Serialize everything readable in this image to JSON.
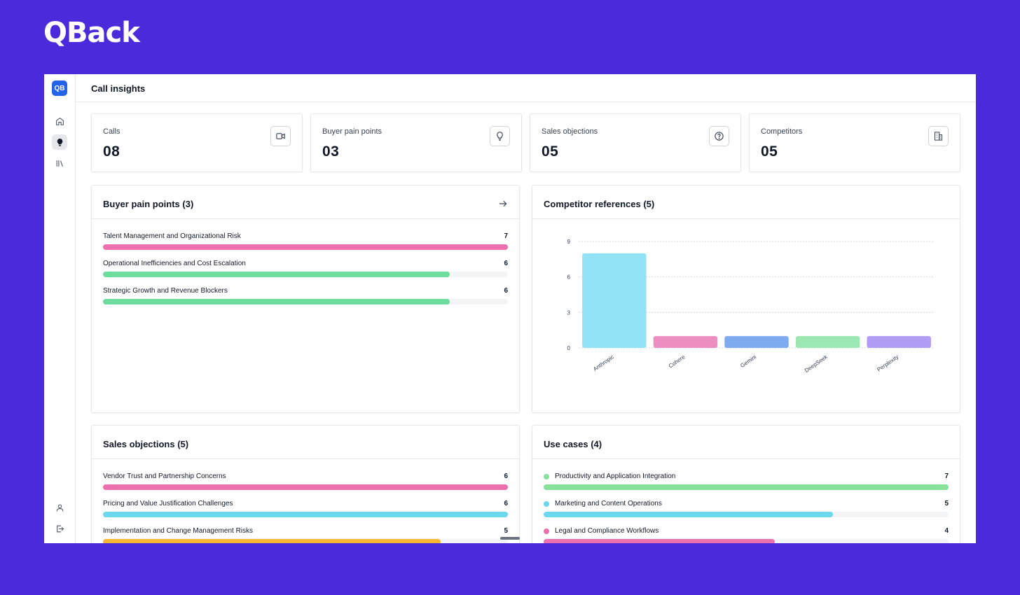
{
  "brand": {
    "name": "QBack"
  },
  "sidebar": {
    "logo_text": "QB",
    "items": [
      {
        "icon": "home-icon"
      },
      {
        "icon": "lightbulb-icon",
        "active": true
      },
      {
        "icon": "library-icon"
      }
    ],
    "bottom_items": [
      {
        "icon": "user-icon"
      },
      {
        "icon": "logout-icon"
      }
    ]
  },
  "header": {
    "title": "Call insights"
  },
  "stats": [
    {
      "label": "Calls",
      "value": "08",
      "icon": "video-icon"
    },
    {
      "label": "Buyer pain points",
      "value": "03",
      "icon": "lightbulb-icon"
    },
    {
      "label": "Sales objections",
      "value": "05",
      "icon": "help-circle-icon"
    },
    {
      "label": "Competitors",
      "value": "05",
      "icon": "building-icon"
    }
  ],
  "pain_points": {
    "title": "Buyer pain points (3)",
    "max": 7,
    "items": [
      {
        "label": "Talent Management and Organizational Risk",
        "value": 7,
        "color": "#ec6fae"
      },
      {
        "label": "Operational Inefficiencies and Cost Escalation",
        "value": 6,
        "color": "#6ddc9c"
      },
      {
        "label": "Strategic Growth and Revenue Blockers",
        "value": 6,
        "color": "#6ddc9c"
      }
    ]
  },
  "competitors_panel": {
    "title": "Competitor references (5)"
  },
  "chart_data": {
    "type": "bar",
    "categories": [
      "Anthropic",
      "Cohere",
      "Gemini",
      "DeepSeek",
      "Perplexity"
    ],
    "values": [
      8,
      1,
      1,
      1,
      1
    ],
    "colors": [
      "#93e3f7",
      "#ec8fc0",
      "#7eaaf0",
      "#9ce8b3",
      "#b09cf2"
    ],
    "ylim": [
      0,
      9
    ],
    "yticks": [
      0,
      3,
      6,
      9
    ],
    "grid": true,
    "title": "",
    "xlabel": "",
    "ylabel": ""
  },
  "objections": {
    "title": "Sales objections (5)",
    "max": 6,
    "items": [
      {
        "label": "Vendor Trust and Partnership Concerns",
        "value": 6,
        "color": "#ec6fae"
      },
      {
        "label": "Pricing and Value Justification Challenges",
        "value": 6,
        "color": "#6cd8ee"
      },
      {
        "label": "Implementation and Change Management Risks",
        "value": 5,
        "color": "#f7b733"
      }
    ]
  },
  "use_cases": {
    "title": "Use cases (4)",
    "max": 7,
    "items": [
      {
        "label": "Productivity and Application Integration",
        "value": 7,
        "color": "#86e29a"
      },
      {
        "label": "Marketing and Content Operations",
        "value": 5,
        "color": "#6cd8ee"
      },
      {
        "label": "Legal and Compliance Workflows",
        "value": 4,
        "color": "#ec6fae"
      }
    ]
  }
}
